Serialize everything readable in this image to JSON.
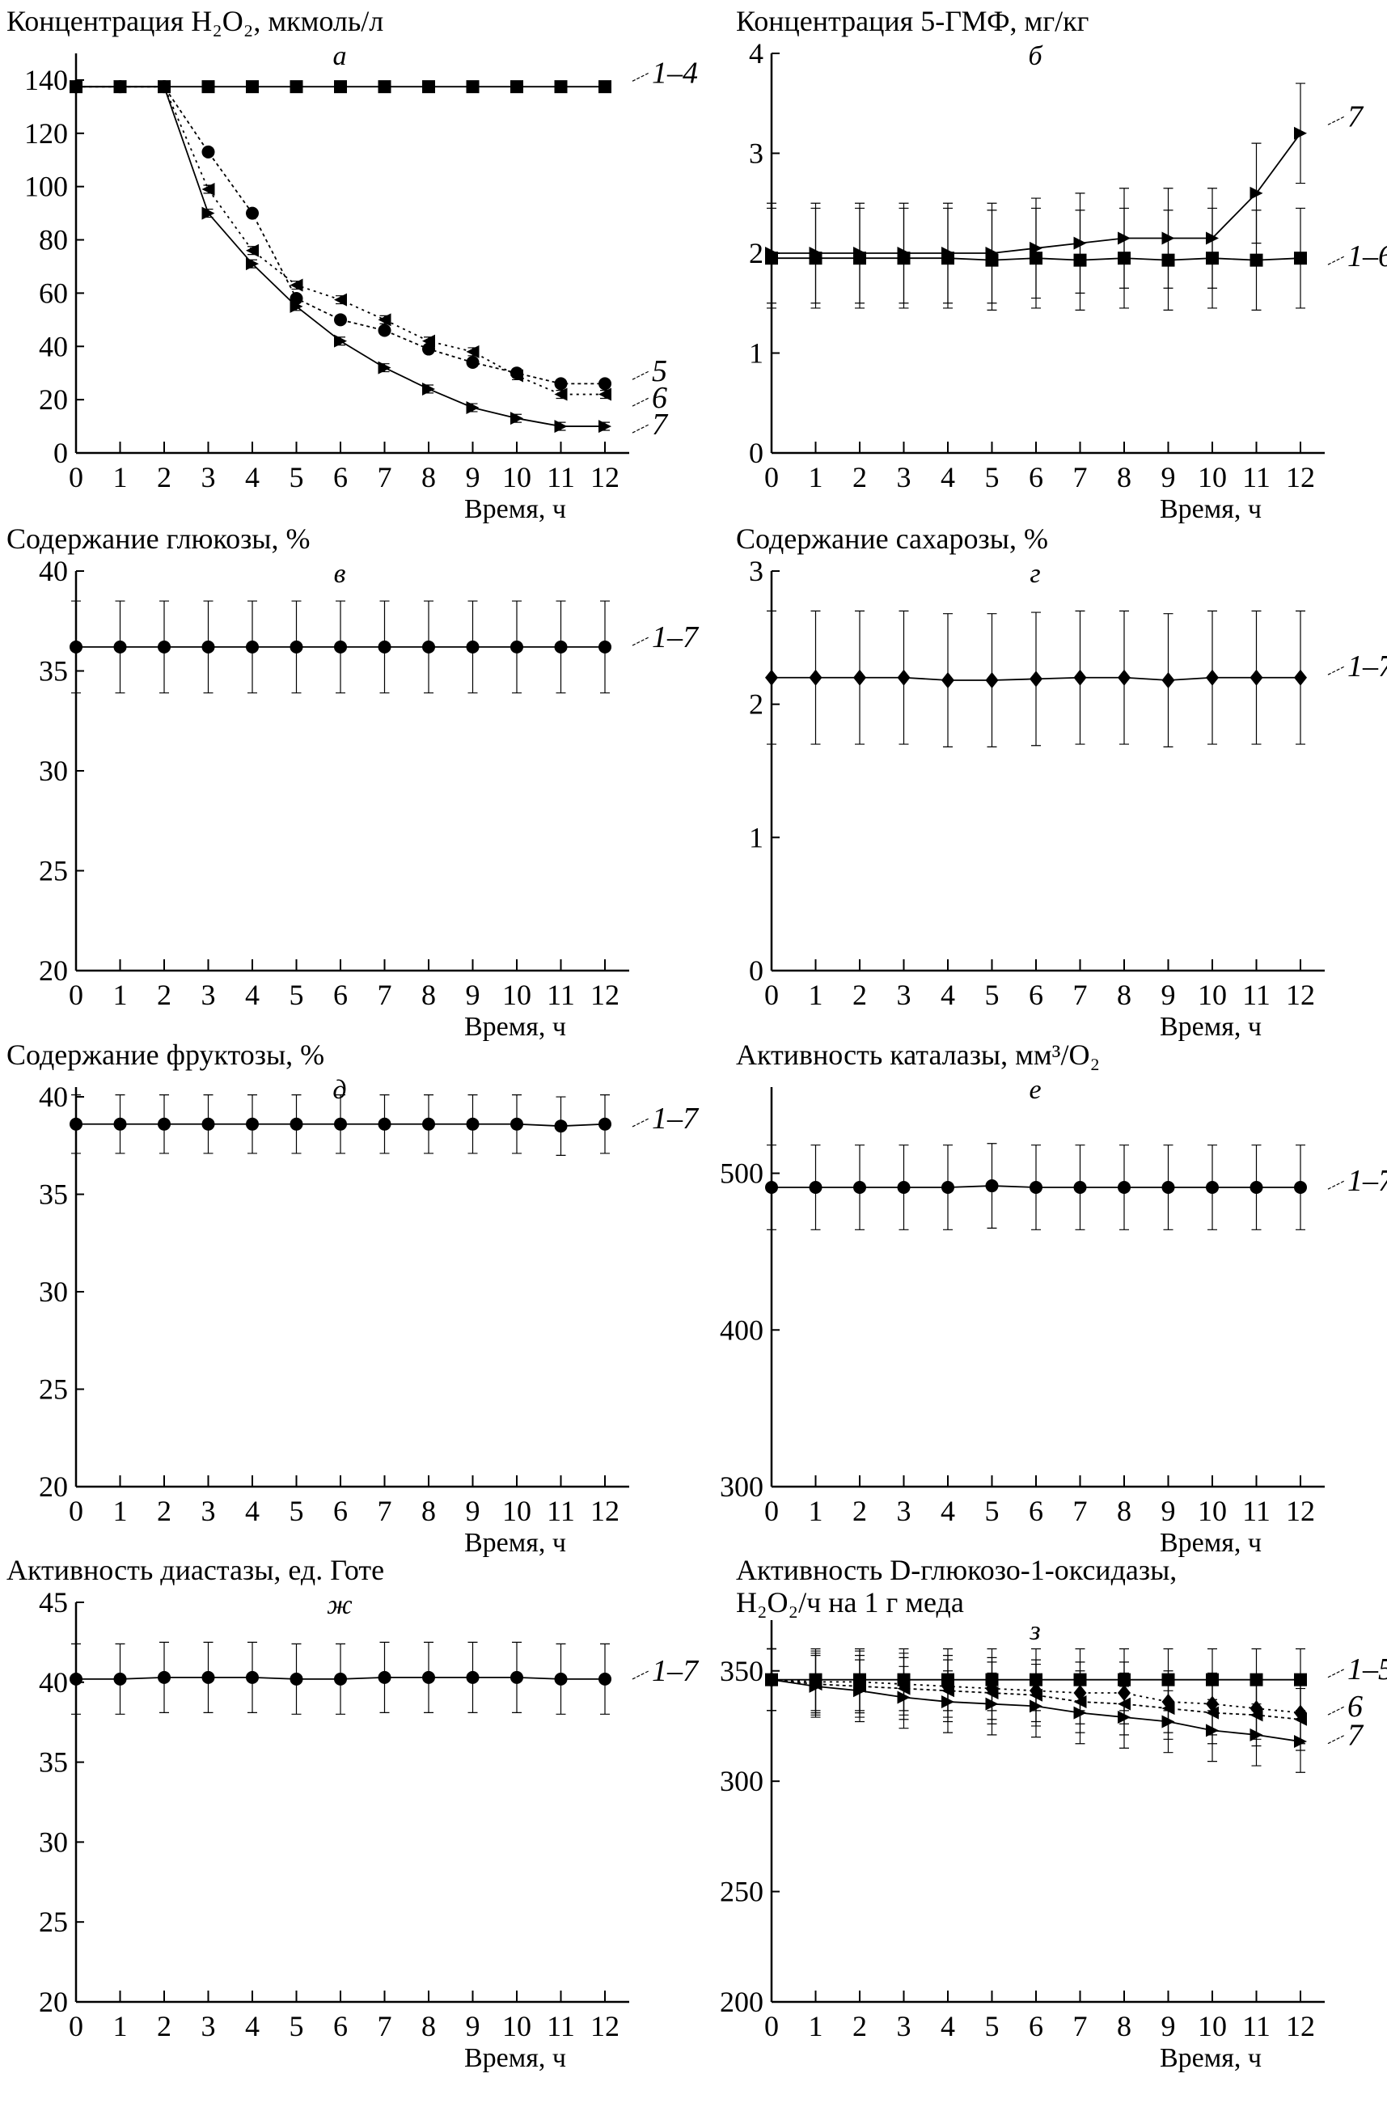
{
  "chart_data": [
    {
      "type": "line",
      "letter": "а",
      "title": "Концентрация H₂O₂, мкмоль/л",
      "title2": "",
      "xlabel": "Время, ч",
      "ylabel": "Концентрация H₂O₂, мкмоль/л",
      "x": [
        0,
        1,
        2,
        3,
        4,
        5,
        6,
        7,
        8,
        9,
        10,
        11,
        12
      ],
      "ylim": [
        0,
        150
      ],
      "yticks": [
        0,
        20,
        40,
        60,
        80,
        100,
        120,
        140
      ],
      "series": [
        {
          "name": "1–4",
          "marker": "square",
          "dash": "",
          "err": 2,
          "values": [
            137.5,
            137.5,
            137.5,
            137.5,
            137.5,
            137.5,
            137.5,
            137.5,
            137.5,
            137.5,
            137.5,
            137.5,
            137.5
          ]
        },
        {
          "name": "5",
          "marker": "circle",
          "dash": "4,4",
          "err": 1.5,
          "values": [
            137.5,
            137.5,
            137.5,
            113,
            90,
            58,
            50,
            46,
            39,
            34,
            30,
            26,
            26
          ]
        },
        {
          "name": "6",
          "marker": "tri-left",
          "dash": "3,5",
          "err": 1.5,
          "values": [
            137.5,
            137.5,
            137.5,
            99,
            76,
            63,
            57.5,
            50,
            42,
            38,
            29,
            22,
            22
          ]
        },
        {
          "name": "7",
          "marker": "tri-right",
          "dash": "",
          "err": 1.5,
          "values": [
            137.5,
            137.5,
            137.5,
            90,
            71,
            55,
            42,
            32,
            24,
            17,
            13,
            10,
            10
          ]
        }
      ],
      "labels": [
        {
          "text": "1–4",
          "y": 142
        },
        {
          "text": "5",
          "y": 30
        },
        {
          "text": "6",
          "y": 20
        },
        {
          "text": "7",
          "y": 10
        }
      ]
    },
    {
      "type": "line",
      "letter": "б",
      "title": "Концентрация 5-ГМФ, мг/кг",
      "title2": "",
      "xlabel": "Время, ч",
      "ylabel": "Концентрация 5-ГМФ, мг/кг",
      "x": [
        0,
        1,
        2,
        3,
        4,
        5,
        6,
        7,
        8,
        9,
        10,
        11,
        12
      ],
      "ylim": [
        0,
        4
      ],
      "yticks": [
        0,
        1,
        2,
        3,
        4
      ],
      "series": [
        {
          "name": "1–6",
          "marker": "square",
          "dash": "",
          "err": 0.5,
          "values": [
            1.95,
            1.95,
            1.95,
            1.95,
            1.95,
            1.93,
            1.95,
            1.93,
            1.95,
            1.93,
            1.95,
            1.93,
            1.95
          ]
        },
        {
          "name": "7",
          "marker": "tri-right",
          "dash": "",
          "err": 0.5,
          "values": [
            2,
            2,
            2,
            2,
            2,
            2,
            2.05,
            2.1,
            2.15,
            2.15,
            2.15,
            2.6,
            3.2
          ]
        }
      ],
      "labels": [
        {
          "text": "7",
          "y": 3.35
        },
        {
          "text": "1–6",
          "y": 1.95
        }
      ]
    },
    {
      "type": "line",
      "letter": "в",
      "title": "Содержание глюкозы, %",
      "title2": "",
      "xlabel": "Время, ч",
      "ylabel": "Содержание глюкозы, %",
      "x": [
        0,
        1,
        2,
        3,
        4,
        5,
        6,
        7,
        8,
        9,
        10,
        11,
        12
      ],
      "ylim": [
        20,
        40
      ],
      "yticks": [
        20,
        25,
        30,
        35,
        40
      ],
      "series": [
        {
          "name": "1–7",
          "marker": "circle",
          "dash": "",
          "err": 2.3,
          "values": [
            36.2,
            36.2,
            36.2,
            36.2,
            36.2,
            36.2,
            36.2,
            36.2,
            36.2,
            36.2,
            36.2,
            36.2,
            36.2
          ]
        }
      ],
      "labels": [
        {
          "text": "1–7",
          "y": 36.6
        }
      ]
    },
    {
      "type": "line",
      "letter": "г",
      "title": "Содержание сахарозы, %",
      "title2": "",
      "xlabel": "Время, ч",
      "ylabel": "Содержание сахарозы, %",
      "x": [
        0,
        1,
        2,
        3,
        4,
        5,
        6,
        7,
        8,
        9,
        10,
        11,
        12
      ],
      "ylim": [
        0,
        3
      ],
      "yticks": [
        0,
        1,
        2,
        3
      ],
      "series": [
        {
          "name": "1–7",
          "marker": "diamond",
          "dash": "",
          "err": 0.5,
          "values": [
            2.2,
            2.2,
            2.2,
            2.2,
            2.18,
            2.18,
            2.19,
            2.2,
            2.2,
            2.18,
            2.2,
            2.2,
            2.2
          ]
        }
      ],
      "labels": [
        {
          "text": "1–7",
          "y": 2.27
        }
      ]
    },
    {
      "type": "line",
      "letter": "д",
      "title": "Содержание фруктозы, %",
      "title2": "",
      "xlabel": "Время, ч",
      "ylabel": "Содержание фруктозы, %",
      "x": [
        0,
        1,
        2,
        3,
        4,
        5,
        6,
        7,
        8,
        9,
        10,
        11,
        12
      ],
      "ylim": [
        20,
        40.5
      ],
      "yticks": [
        20,
        25,
        30,
        35,
        40
      ],
      "series": [
        {
          "name": "1–7",
          "marker": "circle",
          "dash": "",
          "err": 1.5,
          "values": [
            38.6,
            38.6,
            38.6,
            38.6,
            38.6,
            38.6,
            38.6,
            38.6,
            38.6,
            38.6,
            38.6,
            38.5,
            38.6
          ]
        }
      ],
      "labels": [
        {
          "text": "1–7",
          "y": 38.8
        }
      ]
    },
    {
      "type": "line",
      "letter": "е",
      "title": "Активность каталазы, мм³/O₂",
      "title2": "",
      "xlabel": "Время, ч",
      "ylabel": "Активность каталазы, мм³/O₂",
      "x": [
        0,
        1,
        2,
        3,
        4,
        5,
        6,
        7,
        8,
        9,
        10,
        11,
        12
      ],
      "ylim": [
        300,
        555
      ],
      "yticks": [
        300,
        400,
        500
      ],
      "series": [
        {
          "name": "1–7",
          "marker": "circle",
          "dash": "",
          "err": 27,
          "values": [
            491,
            491,
            491,
            491,
            491,
            492,
            491,
            491,
            491,
            491,
            491,
            491,
            491
          ]
        }
      ],
      "labels": [
        {
          "text": "1–7",
          "y": 494
        }
      ]
    },
    {
      "type": "line",
      "letter": "ж",
      "title": "Активность диастазы, ед. Готе",
      "title2": "",
      "xlabel": "Время, ч",
      "ylabel": "Активность диастазы, ед. Готе",
      "x": [
        0,
        1,
        2,
        3,
        4,
        5,
        6,
        7,
        8,
        9,
        10,
        11,
        12
      ],
      "ylim": [
        20,
        45
      ],
      "yticks": [
        20,
        25,
        30,
        35,
        40,
        45
      ],
      "series": [
        {
          "name": "1–7",
          "marker": "circle",
          "dash": "",
          "err": 2.2,
          "values": [
            40.2,
            40.2,
            40.3,
            40.3,
            40.3,
            40.2,
            40.2,
            40.3,
            40.3,
            40.3,
            40.3,
            40.2,
            40.2
          ]
        }
      ],
      "labels": [
        {
          "text": "1–7",
          "y": 40.6
        }
      ]
    },
    {
      "type": "line",
      "letter": "з",
      "title": "Активность D-глюкозо-1-оксидазы,",
      "title2": "H₂O₂/ч на 1 г меда",
      "xlabel": "Время, ч",
      "ylabel": "Активность D-глюкозо-1-оксидазы, H₂O₂/ч на 1 г меда",
      "x": [
        0,
        1,
        2,
        3,
        4,
        5,
        6,
        7,
        8,
        9,
        10,
        11,
        12
      ],
      "ylim": [
        200,
        373
      ],
      "yticks": [
        200,
        250,
        300,
        350
      ],
      "series": [
        {
          "name": "1–5",
          "marker": "square",
          "dash": "",
          "err": 14,
          "values": [
            346,
            346,
            346,
            346,
            346,
            346,
            346,
            346,
            346,
            346,
            346,
            346,
            346
          ]
        },
        {
          "name": "6",
          "marker": "diamond",
          "dash": "3,5",
          "err": 14,
          "values": [
            346,
            345,
            345,
            344,
            343,
            342,
            341,
            340,
            340,
            336,
            335,
            333,
            331
          ]
        },
        {
          "name": "6",
          "marker": "tri-left",
          "dash": "4,4",
          "err": 14,
          "values": [
            346,
            344,
            343,
            342,
            341,
            340,
            339,
            336,
            335,
            333,
            331,
            330,
            328
          ]
        },
        {
          "name": "7",
          "marker": "tri-right",
          "dash": "",
          "err": 14,
          "values": [
            346,
            343,
            341,
            338,
            336,
            335,
            334,
            331,
            329,
            327,
            323,
            321,
            318
          ]
        }
      ],
      "labels": [
        {
          "text": "1–5",
          "y": 350
        },
        {
          "text": "6",
          "y": 333
        },
        {
          "text": "7",
          "y": 320
        }
      ]
    }
  ]
}
